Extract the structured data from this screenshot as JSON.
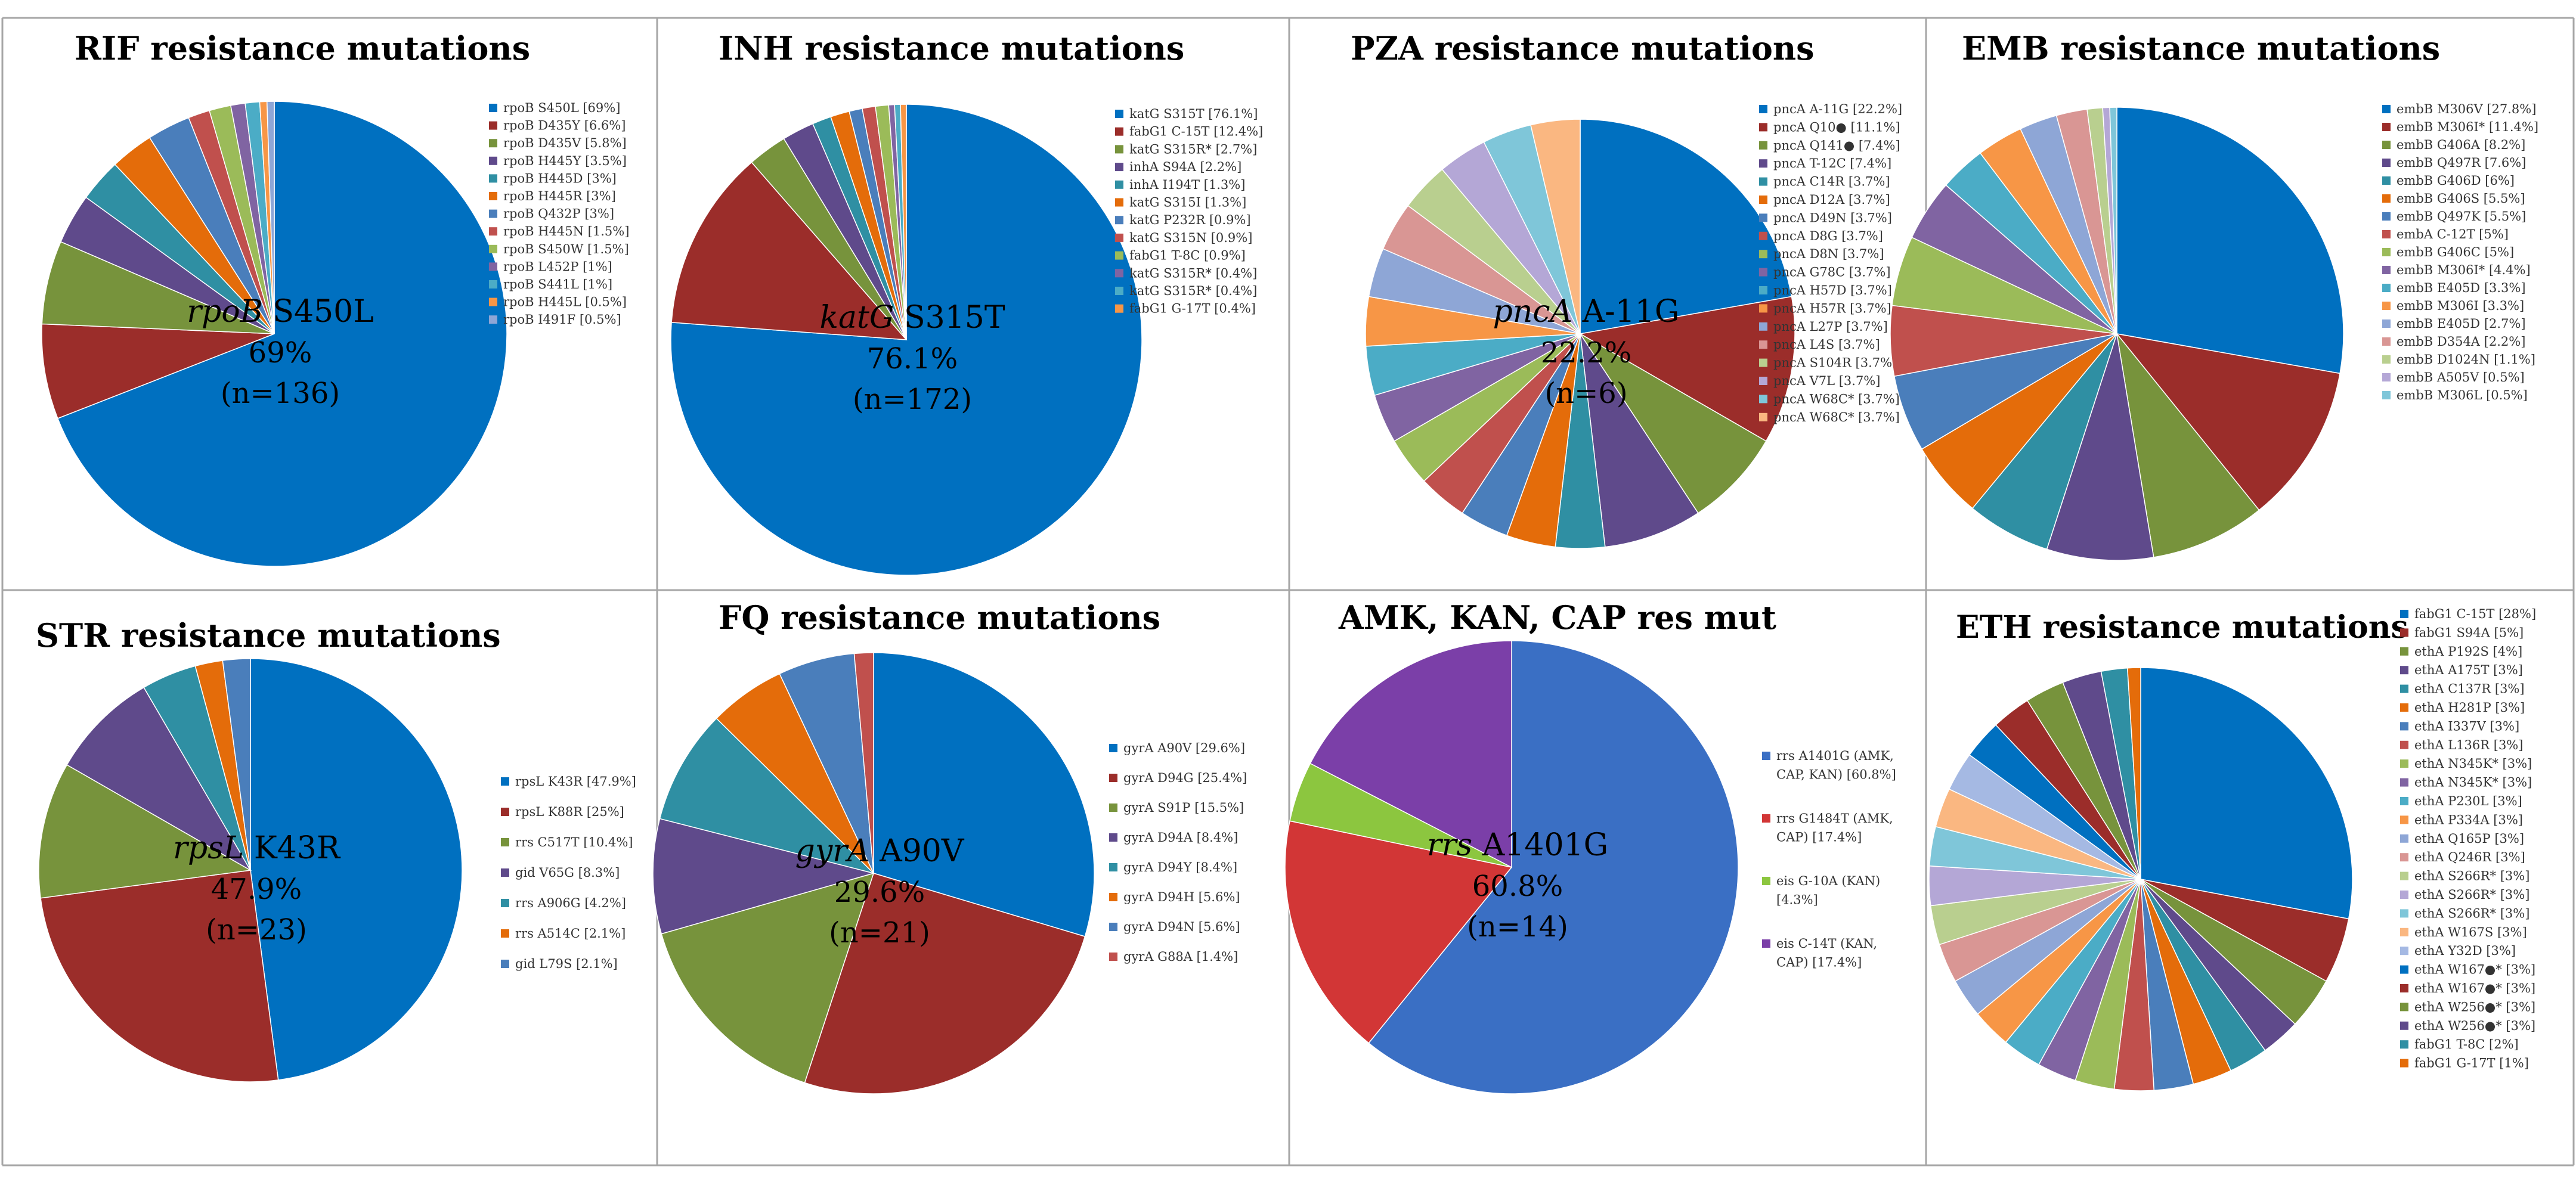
{
  "figure": {
    "panels": [
      {
        "id": "rif",
        "title": "RIF resistance mutations",
        "center_label": {
          "gene": "rpoB",
          "mutation": "S450L",
          "percent": "69%",
          "n": "(n=136)"
        }
      },
      {
        "id": "inh",
        "title": "INH resistance mutations",
        "center_label": {
          "gene": "katG",
          "mutation": "S315T",
          "percent": "76.1%",
          "n": "(n=172)"
        }
      },
      {
        "id": "pza",
        "title": "PZA resistance mutations",
        "center_label": {
          "gene": "pncA",
          "mutation": "A-11G",
          "percent": "22.2%",
          "n": "(n=6)"
        }
      },
      {
        "id": "emb",
        "title": "EMB resistance mutations",
        "center_label": null
      },
      {
        "id": "str",
        "title": "STR resistance mutations",
        "center_label": {
          "gene": "rpsL",
          "mutation": "K43R",
          "percent": "47.9%",
          "n": "(n=23)"
        }
      },
      {
        "id": "fq",
        "title": "FQ resistance mutations",
        "center_label": {
          "gene": "gyrA",
          "mutation": "A90V",
          "percent": "29.6%",
          "n": "(n=21)"
        }
      },
      {
        "id": "amk",
        "title": "AMK, KAN, CAP res mut",
        "center_label": {
          "gene": "rrs",
          "mutation": "A1401G",
          "percent": "60.8%",
          "n": "(n=14)"
        }
      },
      {
        "id": "eth",
        "title": "ETH resistance mutations",
        "center_label": null
      }
    ]
  },
  "chart_data": [
    {
      "type": "pie",
      "title": "RIF resistance mutations",
      "labels": [
        "rpoB S450L [69%]",
        "rpoB D435Y [6.6%]",
        "rpoB D435V [5.8%]",
        "rpoB H445Y [3.5%]",
        "rpoB H445D [3%]",
        "rpoB H445R [3%]",
        "rpoB Q432P [3%]",
        "rpoB H445N [1.5%]",
        "rpoB S450W [1.5%]",
        "rpoB L452P [1%]",
        "rpoB S441L [1%]",
        "rpoB H445L [0.5%]",
        "rpoB I491F [0.5%]"
      ],
      "values": [
        69,
        6.6,
        5.8,
        3.5,
        3,
        3,
        3,
        1.5,
        1.5,
        1,
        1,
        0.5,
        0.5
      ],
      "legend": "right"
    },
    {
      "type": "pie",
      "title": "INH resistance mutations",
      "labels": [
        "katG S315T [76.1%]",
        "fabG1 C-15T [12.4%]",
        "katG S315R* [2.7%]",
        "inhA S94A [2.2%]",
        "inhA I194T [1.3%]",
        "katG S315I [1.3%]",
        "katG P232R [0.9%]",
        "katG S315N [0.9%]",
        "fabG1 T-8C [0.9%]",
        "katG S315R* [0.4%]",
        "katG S315R* [0.4%]",
        "fabG1 G-17T [0.4%]"
      ],
      "values": [
        76.1,
        12.4,
        2.7,
        2.2,
        1.3,
        1.3,
        0.9,
        0.9,
        0.9,
        0.4,
        0.4,
        0.4
      ],
      "legend": "right"
    },
    {
      "type": "pie",
      "title": "PZA resistance mutations",
      "labels": [
        "pncA A-11G [22.2%]",
        "pncA Q10● [11.1%]",
        "pncA Q141● [7.4%]",
        "pncA T-12C [7.4%]",
        "pncA C14R [3.7%]",
        "pncA D12A [3.7%]",
        "pncA D49N [3.7%]",
        "pncA D8G [3.7%]",
        "pncA D8N [3.7%]",
        "pncA G78C [3.7%]",
        "pncA H57D [3.7%]",
        "pncA H57R [3.7%]",
        "pncA L27P [3.7%]",
        "pncA L4S [3.7%]",
        "pncA S104R [3.7%]",
        "pncA V7L [3.7%]",
        "pncA W68C* [3.7%]",
        "pncA W68C* [3.7%]"
      ],
      "values": [
        22.2,
        11.1,
        7.4,
        7.4,
        3.7,
        3.7,
        3.7,
        3.7,
        3.7,
        3.7,
        3.7,
        3.7,
        3.7,
        3.7,
        3.7,
        3.7,
        3.7,
        3.7
      ],
      "legend": "right"
    },
    {
      "type": "pie",
      "title": "EMB resistance mutations",
      "labels": [
        "embB M306V [27.8%]",
        "embB M306I* [11.4%]",
        "embB G406A [8.2%]",
        "embB Q497R [7.6%]",
        "embB G406D [6%]",
        "embB G406S [5.5%]",
        "embB Q497K [5.5%]",
        "embA C-12T [5%]",
        "embB G406C [5%]",
        "embB M306I* [4.4%]",
        "embB E405D [3.3%]",
        "embB M306I [3.3%]",
        "embB E405D [2.7%]",
        "embB D354A [2.2%]",
        "embB D1024N [1.1%]",
        "embB A505V [0.5%]",
        "embB M306L [0.5%]"
      ],
      "values": [
        27.8,
        11.4,
        8.2,
        7.6,
        6,
        5.5,
        5.5,
        5,
        5,
        4.4,
        3.3,
        3.3,
        2.7,
        2.2,
        1.1,
        0.5,
        0.5
      ],
      "legend": "right"
    },
    {
      "type": "pie",
      "title": "STR resistance mutations",
      "labels": [
        "rpsL K43R [47.9%]",
        "rpsL K88R [25%]",
        "rrs C517T [10.4%]",
        "gid V65G [8.3%]",
        "rrs A906G [4.2%]",
        "rrs A514C [2.1%]",
        "gid L79S [2.1%]"
      ],
      "values": [
        47.9,
        25,
        10.4,
        8.3,
        4.2,
        2.1,
        2.1
      ],
      "legend": "right"
    },
    {
      "type": "pie",
      "title": "FQ resistance mutations",
      "labels": [
        "gyrA A90V [29.6%]",
        "gyrA D94G [25.4%]",
        "gyrA S91P [15.5%]",
        "gyrA D94A [8.4%]",
        "gyrA D94Y [8.4%]",
        "gyrA D94H [5.6%]",
        "gyrA D94N [5.6%]",
        "gyrA G88A [1.4%]"
      ],
      "values": [
        29.6,
        25.4,
        15.5,
        8.4,
        8.4,
        5.6,
        5.6,
        1.4
      ],
      "legend": "right"
    },
    {
      "type": "pie",
      "title": "AMK, KAN, CAP res mut",
      "labels": [
        "rrs A1401G (AMK, CAP, KAN) [60.8%]",
        "rrs G1484T (AMK, CAP) [17.4%]",
        "eis G-10A (KAN) [4.3%]",
        "eis C-14T (KAN, CAP) [17.4%]"
      ],
      "legend_lines": [
        [
          "rrs A1401G (AMK,",
          "CAP, KAN) [60.8%]"
        ],
        [
          "rrs G1484T (AMK,",
          "CAP) [17.4%]"
        ],
        [
          "eis G-10A (KAN)",
          "[4.3%]"
        ],
        [
          "eis C-14T (KAN,",
          "CAP) [17.4%]"
        ]
      ],
      "values": [
        60.8,
        17.4,
        4.3,
        17.4
      ],
      "legend": "right"
    },
    {
      "type": "pie",
      "title": "ETH resistance mutations",
      "labels": [
        "fabG1 C-15T [28%]",
        "fabG1 S94A [5%]",
        "ethA P192S [4%]",
        "ethA A175T [3%]",
        "ethA C137R [3%]",
        "ethA H281P [3%]",
        "ethA I337V [3%]",
        "ethA L136R [3%]",
        "ethA N345K* [3%]",
        "ethA N345K* [3%]",
        "ethA P230L [3%]",
        "ethA P334A [3%]",
        "ethA Q165P [3%]",
        "ethA Q246R [3%]",
        "ethA S266R* [3%]",
        "ethA S266R* [3%]",
        "ethA S266R* [3%]",
        "ethA W167S [3%]",
        "ethA Y32D [3%]",
        "ethA W167●* [3%]",
        "ethA W167●* [3%]",
        "ethA W256●* [3%]",
        "ethA W256●* [3%]",
        "fabG1 T-8C [2%]",
        "fabG1 G-17T [1%]"
      ],
      "values": [
        28,
        5,
        4,
        3,
        3,
        3,
        3,
        3,
        3,
        3,
        3,
        3,
        3,
        3,
        3,
        3,
        3,
        3,
        3,
        3,
        3,
        3,
        3,
        2,
        1
      ],
      "legend": "right"
    }
  ],
  "palette": [
    "#0070c0",
    "#9b2d2a",
    "#77933c",
    "#5f4a8b",
    "#2f8fa3",
    "#e46c0a",
    "#4a7ebb",
    "#c0504d",
    "#9bbb59",
    "#8064a2",
    "#4bacc6",
    "#f79646",
    "#8ea6d6",
    "#d99694",
    "#b9cf8f",
    "#b4a7d6",
    "#7fc6d9",
    "#fab781",
    "#a5b9e3"
  ],
  "panel_palettes": {
    "amk": [
      "#3a6fc4",
      "#d23636",
      "#8cc63f",
      "#7b3fa8"
    ]
  }
}
